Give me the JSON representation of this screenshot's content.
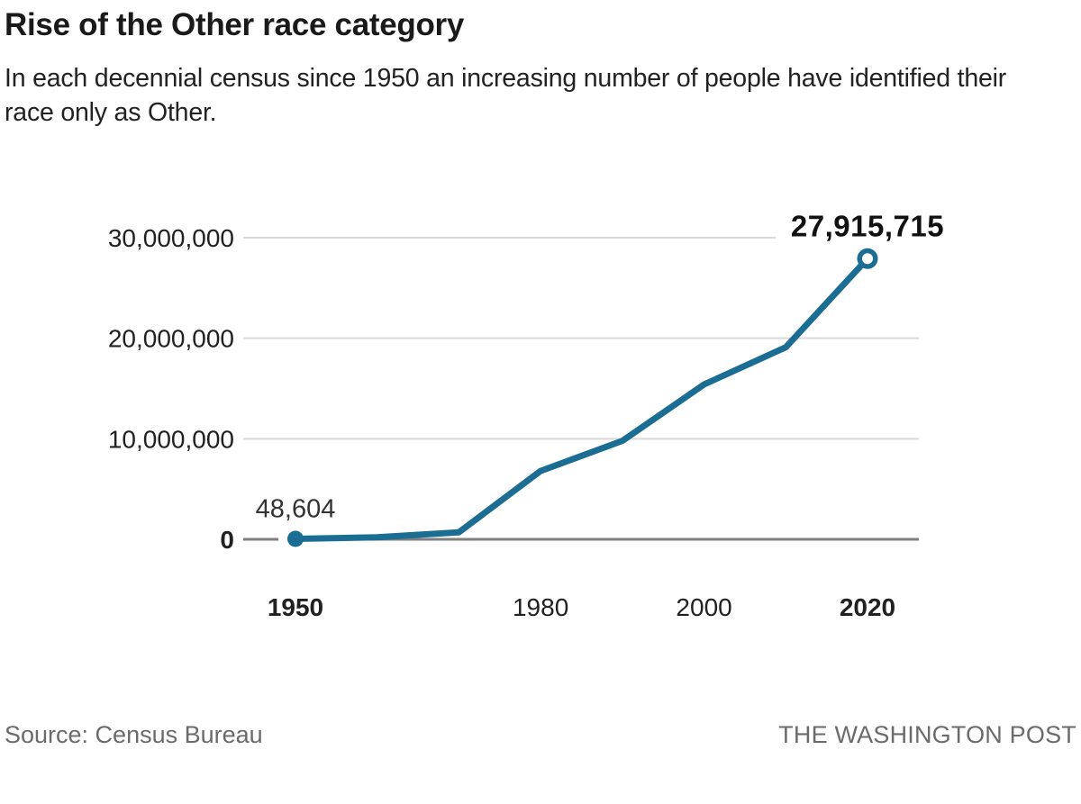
{
  "header": {
    "title": "Rise of the Other race category",
    "subtitle": "In each decennial census since 1950 an increasing number of people have identified their race only as Other."
  },
  "footer": {
    "source": "Source: Census Bureau",
    "credit": "THE WASHINGTON POST"
  },
  "chart_data": {
    "type": "line",
    "title": "Rise of the Other race category",
    "subtitle": "In each decennial census since 1950 an increasing number of people have identified their race only as Other.",
    "x": [
      1950,
      1960,
      1970,
      1980,
      1990,
      2000,
      2010,
      2020
    ],
    "values": [
      48604,
      200000,
      700000,
      6800000,
      9800000,
      15400000,
      19100000,
      27915715
    ],
    "series_note": "People identifying race only as Other; 1950 and 2020 values labeled on chart, intermediate values estimated from gridlines",
    "labeled_points": [
      {
        "x": 1950,
        "value": 48604,
        "label": "48,604",
        "marker": "filled-dot"
      },
      {
        "x": 2020,
        "value": 27915715,
        "label": "27,915,715",
        "marker": "open-ring"
      }
    ],
    "yticks": [
      {
        "value": 0,
        "label": "0",
        "bold": true
      },
      {
        "value": 10000000,
        "label": "10,000,000",
        "bold": false
      },
      {
        "value": 20000000,
        "label": "20,000,000",
        "bold": false
      },
      {
        "value": 30000000,
        "label": "30,000,000",
        "bold": false
      }
    ],
    "xticks": [
      {
        "value": 1950,
        "label": "1950",
        "bold": true
      },
      {
        "value": 1980,
        "label": "1980",
        "bold": false
      },
      {
        "value": 2000,
        "label": "2000",
        "bold": false
      },
      {
        "value": 2020,
        "label": "2020",
        "bold": true
      }
    ],
    "xlim": [
      1950,
      2020
    ],
    "ylim": [
      0,
      30000000
    ],
    "grid": "horizontal",
    "legend": "none",
    "line_color": "#1b6d93",
    "colors": {
      "grid": "#d9d9d9",
      "axis": "#7f7f7f",
      "text_dark": "#1a1a1a",
      "text_gray": "#6b6b6b"
    }
  }
}
